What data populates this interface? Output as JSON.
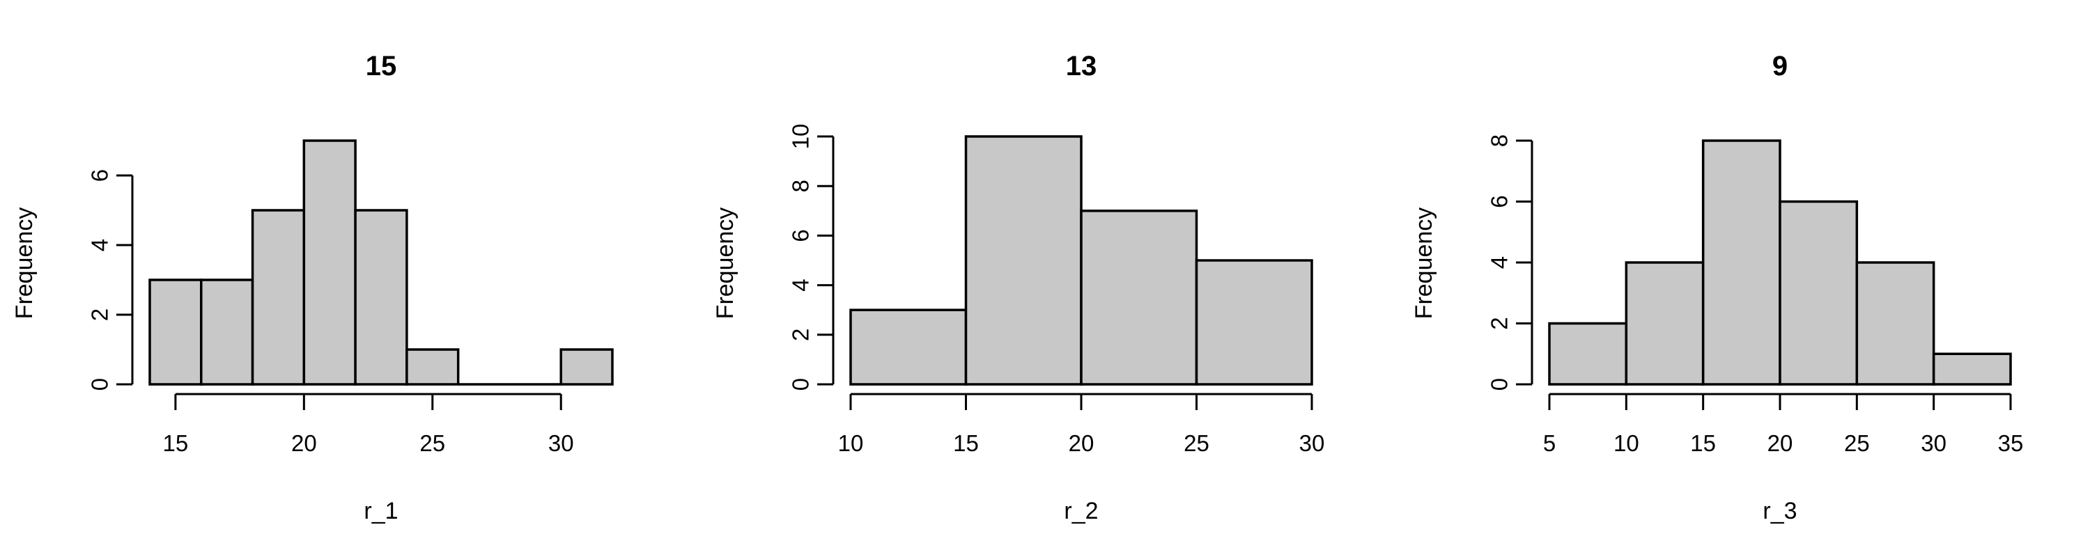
{
  "chart_data": [
    {
      "type": "bar",
      "title": "15",
      "xlabel": "r_1",
      "ylabel": "Frequency",
      "bins": [
        [
          14,
          16
        ],
        [
          16,
          18
        ],
        [
          18,
          20
        ],
        [
          20,
          22
        ],
        [
          22,
          24
        ],
        [
          24,
          26
        ],
        [
          26,
          28
        ],
        [
          28,
          30
        ],
        [
          30,
          32
        ]
      ],
      "values": [
        3,
        3,
        5,
        7,
        5,
        1,
        0,
        0,
        1
      ],
      "xticks": [
        15,
        20,
        25,
        30
      ],
      "yticks": [
        0,
        2,
        4,
        6
      ],
      "xlim": [
        14,
        32
      ],
      "ylim": [
        0,
        7
      ],
      "grid": false,
      "bar_color": "#c8c8c8"
    },
    {
      "type": "bar",
      "title": "13",
      "xlabel": "r_2",
      "ylabel": "Frequency",
      "bins": [
        [
          10,
          15
        ],
        [
          15,
          20
        ],
        [
          20,
          25
        ],
        [
          25,
          30
        ]
      ],
      "values": [
        3,
        10,
        7,
        5
      ],
      "xticks": [
        10,
        15,
        20,
        25,
        30
      ],
      "yticks": [
        0,
        2,
        4,
        6,
        8,
        10
      ],
      "xlim": [
        10,
        30
      ],
      "ylim": [
        0,
        10
      ],
      "grid": false,
      "bar_color": "#c8c8c8"
    },
    {
      "type": "bar",
      "title": "9",
      "xlabel": "r_3",
      "ylabel": "Frequency",
      "bins": [
        [
          5,
          10
        ],
        [
          10,
          15
        ],
        [
          15,
          20
        ],
        [
          20,
          25
        ],
        [
          25,
          30
        ],
        [
          30,
          35
        ]
      ],
      "values": [
        2,
        4,
        8,
        6,
        4,
        1
      ],
      "xticks": [
        5,
        10,
        15,
        20,
        25,
        30,
        35
      ],
      "yticks": [
        0,
        2,
        4,
        6,
        8
      ],
      "xlim": [
        5,
        35
      ],
      "ylim": [
        0,
        8
      ],
      "grid": false,
      "bar_color": "#c8c8c8"
    }
  ]
}
